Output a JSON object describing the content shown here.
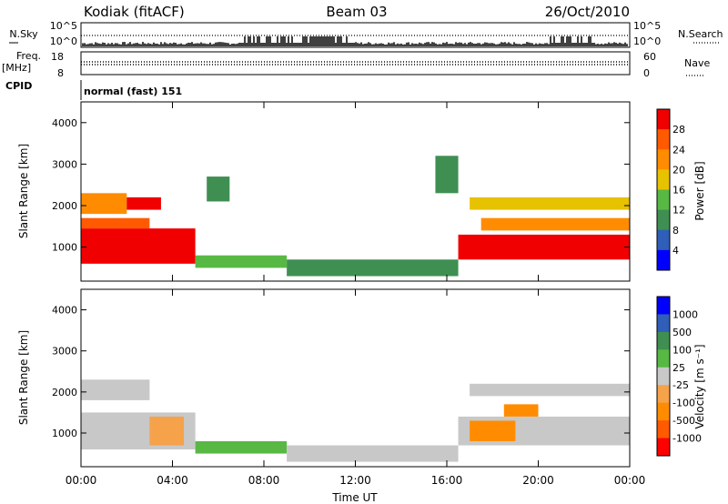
{
  "header": {
    "station": "Kodiak (fitACF)",
    "beam": "Beam 03",
    "date": "26/Oct/2010"
  },
  "top_panel": {
    "left_label": "N.Sky",
    "right_label": "N.Search",
    "left_ticks": [
      "10^5",
      "10^0"
    ],
    "right_ticks": [
      "10^5",
      "10^0"
    ]
  },
  "freq_panel": {
    "left_label": "Freq.",
    "left_unit": "[MHz]",
    "left_ticks": [
      "18",
      "8"
    ],
    "right_label": "Nave",
    "right_ticks": [
      "60",
      "0"
    ]
  },
  "cpid": {
    "label": "CPID",
    "value": "normal (fast) 151"
  },
  "chart_data": [
    {
      "type": "heatmap",
      "ylabel": "Slant Range [km]",
      "ylim": [
        180,
        4500
      ],
      "yticks": [
        "1000",
        "2000",
        "3000",
        "4000"
      ],
      "colorbar_label": "Power [dB]",
      "colorbar_ticks": [
        "28",
        "24",
        "20",
        "16",
        "12",
        "8",
        "4"
      ],
      "colors": [
        "#0000ff",
        "#2f5fb8",
        "#3f8f52",
        "#58b844",
        "#e7c200",
        "#ff8c00",
        "#ff5a00",
        "#f00000"
      ],
      "patches": [
        {
          "t": [
            0.0,
            5.0
          ],
          "r": [
            600,
            1450
          ],
          "level": 7
        },
        {
          "t": [
            0.0,
            3.0
          ],
          "r": [
            1450,
            1700
          ],
          "level": 6
        },
        {
          "t": [
            0.0,
            2.0
          ],
          "r": [
            1800,
            2300
          ],
          "level": 5
        },
        {
          "t": [
            2.0,
            3.5
          ],
          "r": [
            1900,
            2200
          ],
          "level": 7
        },
        {
          "t": [
            5.0,
            9.0
          ],
          "r": [
            500,
            800
          ],
          "level": 3
        },
        {
          "t": [
            9.0,
            16.5
          ],
          "r": [
            300,
            700
          ],
          "level": 2
        },
        {
          "t": [
            5.5,
            6.5
          ],
          "r": [
            2100,
            2700
          ],
          "level": 2
        },
        {
          "t": [
            15.5,
            16.5
          ],
          "r": [
            2300,
            3200
          ],
          "level": 2
        },
        {
          "t": [
            16.5,
            24.0
          ],
          "r": [
            700,
            1300
          ],
          "level": 7
        },
        {
          "t": [
            17.5,
            24.0
          ],
          "r": [
            1400,
            1700
          ],
          "level": 5
        },
        {
          "t": [
            17.0,
            24.0
          ],
          "r": [
            1900,
            2200
          ],
          "level": 4
        }
      ]
    },
    {
      "type": "heatmap",
      "ylabel": "Slant Range [km]",
      "ylim": [
        180,
        4500
      ],
      "yticks": [
        "1000",
        "2000",
        "3000",
        "4000"
      ],
      "xlabel": "Time UT",
      "xticks": [
        "00:00",
        "04:00",
        "08:00",
        "12:00",
        "16:00",
        "20:00",
        "00:00"
      ],
      "xlim": [
        0,
        24
      ],
      "colorbar_label": "Velocity [m s⁻¹]",
      "colorbar_ticks": [
        "1000",
        "500",
        "100",
        "25",
        "-25",
        "-100",
        "-500",
        "-1000"
      ],
      "colors": [
        "#ff0000",
        "#ff5a00",
        "#ff8c00",
        "#f5a24a",
        "#c8c8c8",
        "#58b844",
        "#3f8f52",
        "#2f5fb8",
        "#0000ff"
      ],
      "patches": [
        {
          "t": [
            0.0,
            5.0
          ],
          "r": [
            600,
            1500
          ],
          "level": 4
        },
        {
          "t": [
            3.0,
            4.5
          ],
          "r": [
            700,
            1400
          ],
          "level": 3
        },
        {
          "t": [
            0.0,
            3.0
          ],
          "r": [
            1800,
            2300
          ],
          "level": 4
        },
        {
          "t": [
            5.0,
            9.0
          ],
          "r": [
            500,
            800
          ],
          "level": 5
        },
        {
          "t": [
            9.0,
            16.5
          ],
          "r": [
            300,
            700
          ],
          "level": 4
        },
        {
          "t": [
            16.5,
            24.0
          ],
          "r": [
            700,
            1400
          ],
          "level": 4
        },
        {
          "t": [
            17.0,
            19.0
          ],
          "r": [
            800,
            1300
          ],
          "level": 2
        },
        {
          "t": [
            18.5,
            20.0
          ],
          "r": [
            1400,
            1700
          ],
          "level": 2
        },
        {
          "t": [
            17.0,
            24.0
          ],
          "r": [
            1900,
            2200
          ],
          "level": 4
        }
      ]
    }
  ]
}
